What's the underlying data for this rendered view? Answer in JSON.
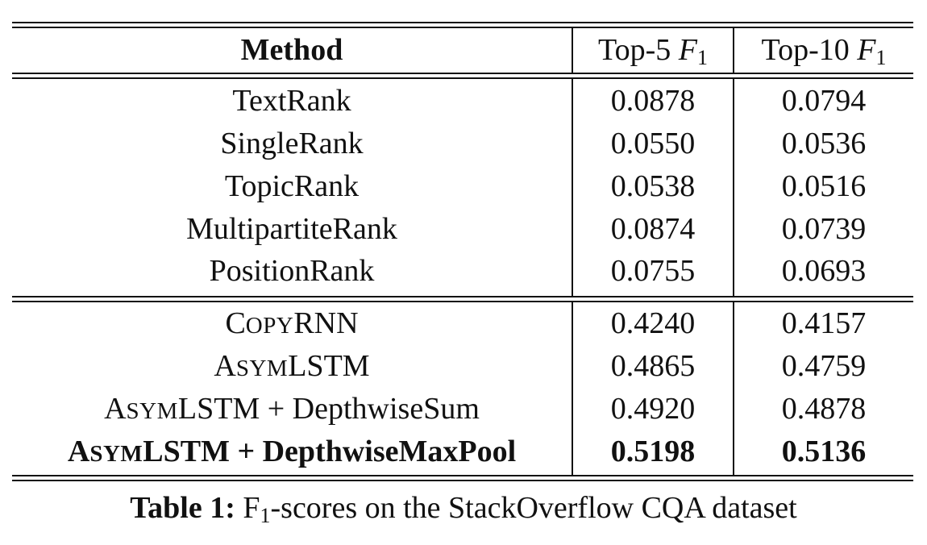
{
  "table": {
    "headers": {
      "method": "Method",
      "top5_prefix": "Top-5 ",
      "top10_prefix": "Top-10 ",
      "f_symbol": "F",
      "f_subscript": "1"
    },
    "group1": [
      {
        "method": "TextRank",
        "top5": "0.0878",
        "top10": "0.0794"
      },
      {
        "method": "SingleRank",
        "top5": "0.0550",
        "top10": "0.0536"
      },
      {
        "method": "TopicRank",
        "top5": "0.0538",
        "top10": "0.0516"
      },
      {
        "method": "MultipartiteRank",
        "top5": "0.0874",
        "top10": "0.0739"
      },
      {
        "method": "PositionRank",
        "top5": "0.0755",
        "top10": "0.0693"
      }
    ],
    "group2": [
      {
        "method_lead": "C",
        "method_sc": "OPY",
        "method_rest": "RNN",
        "top5": "0.4240",
        "top10": "0.4157"
      },
      {
        "method_lead": "A",
        "method_sc": "SYM",
        "method_rest": "LSTM",
        "top5": "0.4865",
        "top10": "0.4759"
      },
      {
        "method_lead": "A",
        "method_sc": "SYM",
        "method_rest": "LSTM + DepthwiseSum",
        "top5": "0.4920",
        "top10": "0.4878"
      },
      {
        "method_lead": "A",
        "method_sc": "SYM",
        "method_rest": "LSTM + DepthwiseMaxPool",
        "top5": "0.5198",
        "top10": "0.5136"
      }
    ]
  },
  "caption": {
    "label": "Table 1:",
    "text_f": " F",
    "text_sub": "1",
    "text_rest": "-scores on the StackOverflow CQA dataset"
  }
}
